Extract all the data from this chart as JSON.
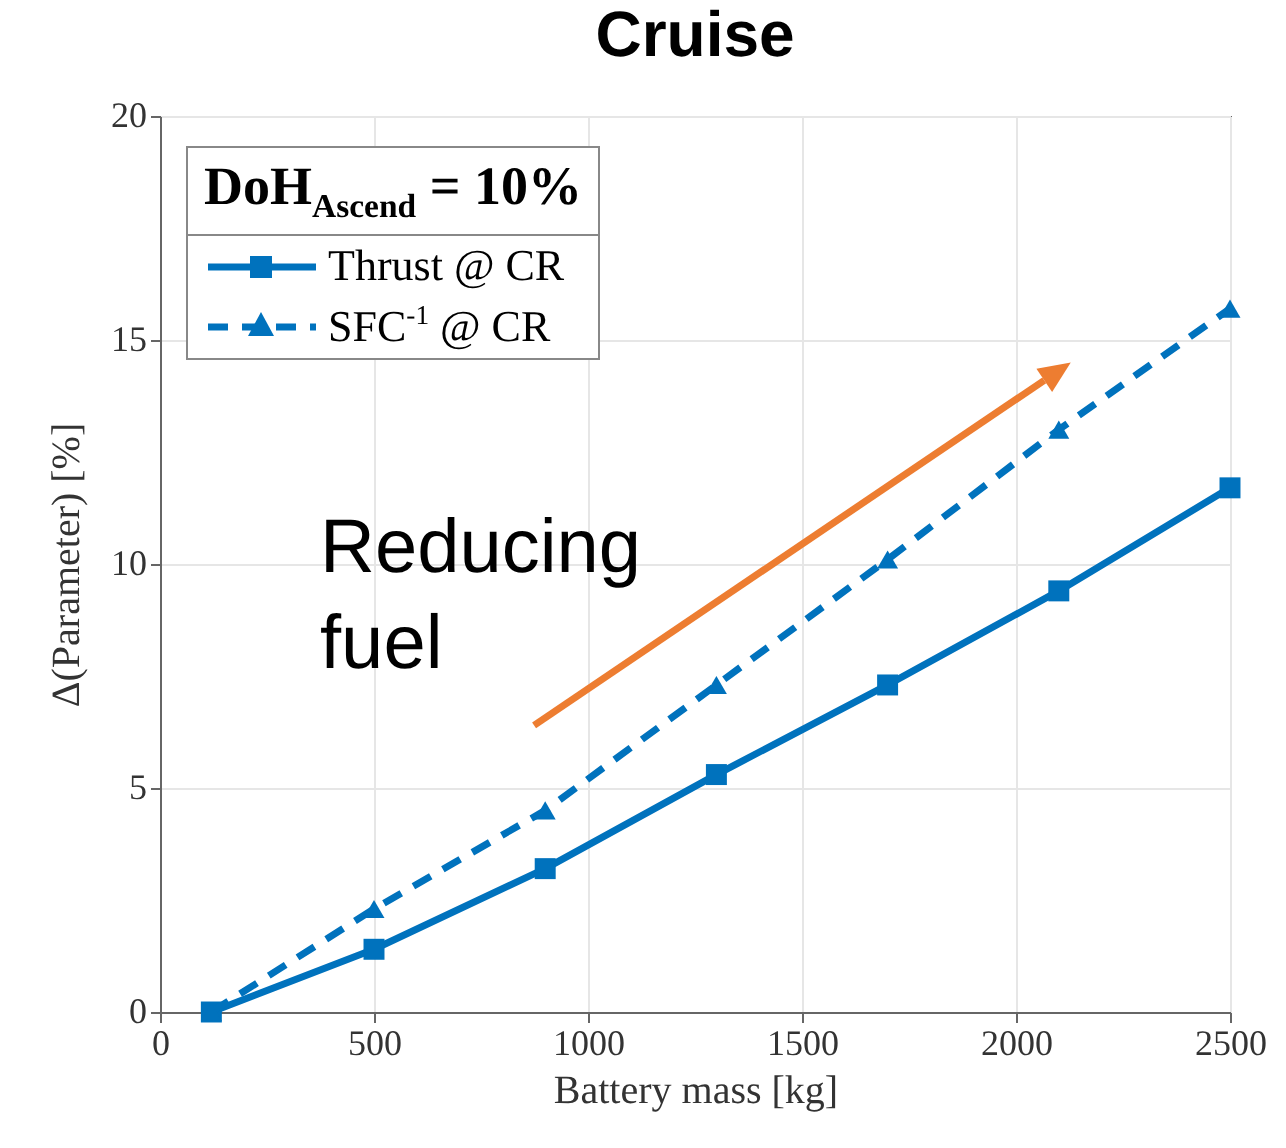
{
  "chart_data": {
    "type": "line",
    "title": "Cruise",
    "xlabel": "Battery mass [kg]",
    "ylabel": "Δ(Parameter) [%]",
    "legend_title": "DoH$_{Ascend}$ = 10%",
    "x": [
      120,
      500,
      900,
      1300,
      1700,
      2100,
      2500
    ],
    "series": [
      {
        "name": "Thrust @ CR",
        "color": "#0072bd",
        "marker": "square",
        "line_style": "solid",
        "values": [
          0,
          1.4,
          3.2,
          5.3,
          7.3,
          9.4,
          11.7
        ]
      },
      {
        "name": "SFC$^{-1}$ @ CR",
        "color": "#0072bd",
        "marker": "triangle",
        "line_style": "dashed",
        "values": [
          0,
          2.3,
          4.5,
          7.3,
          10.1,
          13.0,
          15.7
        ]
      }
    ],
    "xlim": [
      0,
      2500
    ],
    "xticks": [
      0,
      500,
      1000,
      1500,
      2000,
      2500
    ],
    "ylim": [
      0,
      20
    ],
    "yticks": [
      0,
      5,
      10,
      15,
      20
    ],
    "grid": true,
    "legend": "top left",
    "annotations": [
      "Reducing fuel"
    ]
  }
}
